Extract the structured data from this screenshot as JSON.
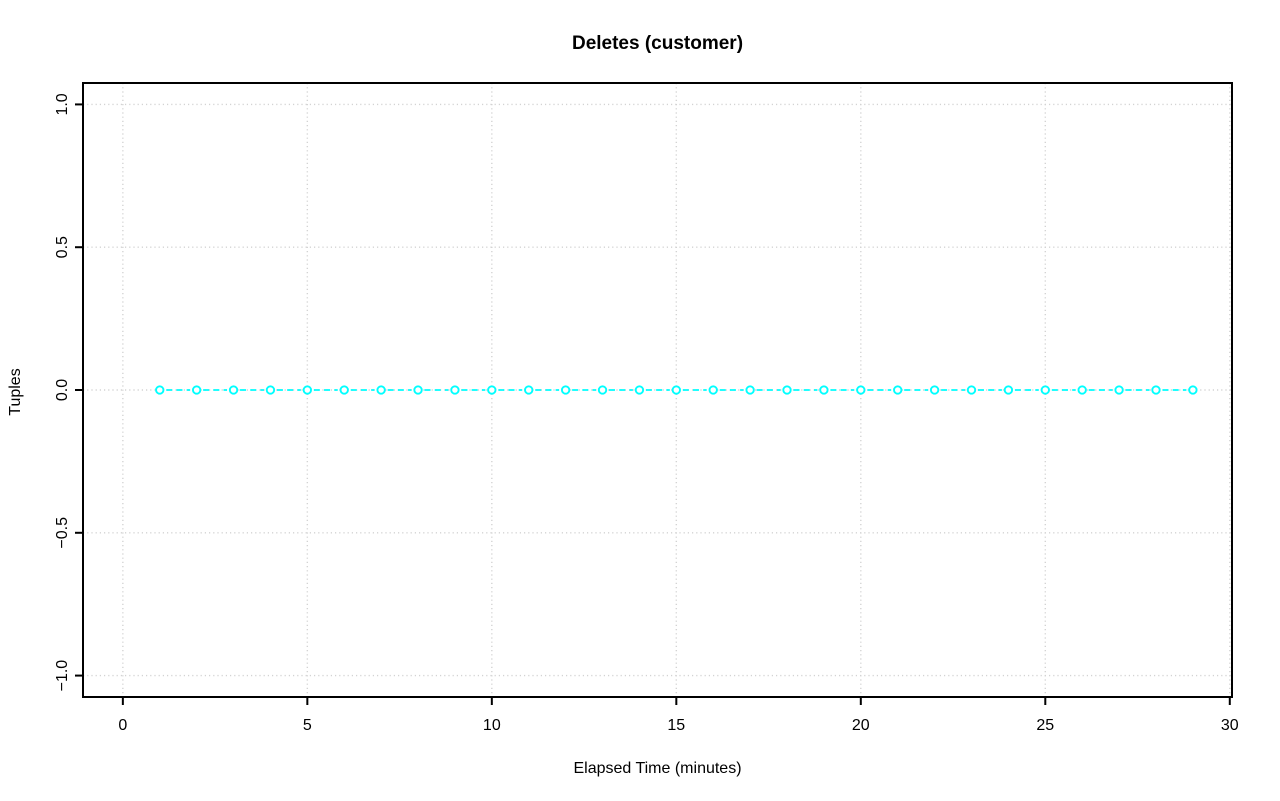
{
  "page": {
    "background": "#FFFFFF"
  },
  "chart_data": {
    "type": "line",
    "title": "Deletes (customer)",
    "xlabel": "Elapsed Time (minutes)",
    "ylabel": "Tuples",
    "x": [
      1,
      2,
      3,
      4,
      5,
      6,
      7,
      8,
      9,
      10,
      11,
      12,
      13,
      14,
      15,
      16,
      17,
      18,
      19,
      20,
      21,
      22,
      23,
      24,
      25,
      26,
      27,
      28,
      29
    ],
    "series": [
      {
        "name": "deletes",
        "values": [
          0,
          0,
          0,
          0,
          0,
          0,
          0,
          0,
          0,
          0,
          0,
          0,
          0,
          0,
          0,
          0,
          0,
          0,
          0,
          0,
          0,
          0,
          0,
          0,
          0,
          0,
          0,
          0,
          0
        ]
      }
    ],
    "x_ticks": [
      0,
      5,
      10,
      15,
      20,
      25,
      30
    ],
    "x_tick_labels": [
      "0",
      "5",
      "10",
      "15",
      "20",
      "25",
      "30"
    ],
    "y_ticks": [
      -1.0,
      -0.5,
      0.0,
      0.5,
      1.0
    ],
    "y_tick_labels": [
      "−1.0",
      "−0.5",
      "0.0",
      "0.5",
      "1.0"
    ],
    "xlim": [
      -1.08,
      30.06
    ],
    "ylim": [
      -1.075,
      1.075
    ],
    "grid": true,
    "grid_style": "dotted",
    "legend": "none",
    "marker": "open-circle",
    "line_style": "dashed",
    "colors": {
      "series": "#00FFFF",
      "grid": "#D3D3D3",
      "axis": "#000000",
      "text": "#000000",
      "marker_fill": "#FFFFFF"
    }
  }
}
